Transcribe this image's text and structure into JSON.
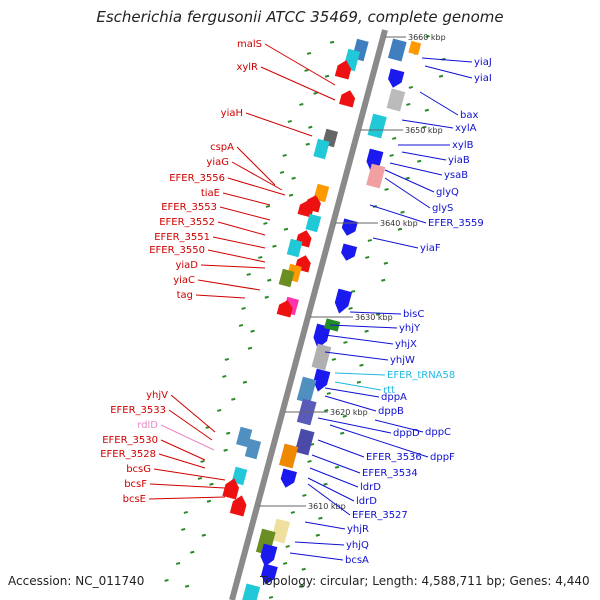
{
  "title": "Escherichia fergusonii ATCC 35469, complete genome",
  "footer": {
    "accession": "Accession: NC_011740",
    "summary": "Topology: circular; Length: 4,588,711 bp; Genes: 4,440"
  },
  "colors": {
    "left_label": "#d00000",
    "right_label": "#1010d0",
    "trna_label": "#22b8e0",
    "rna_label": "#e888c8",
    "backbone": "#808080"
  },
  "scale_ticks": [
    "3660 kbp",
    "3650 kbp",
    "3640 kbp",
    "3630 kbp",
    "3620 kbp",
    "3610 kbp"
  ],
  "left_genes": [
    {
      "name": "malS",
      "color": "red"
    },
    {
      "name": "xylR",
      "color": "red"
    },
    {
      "name": "yiaH",
      "color": "red"
    },
    {
      "name": "cspA",
      "color": "red"
    },
    {
      "name": "yiaG",
      "color": "red"
    },
    {
      "name": "EFER_3556",
      "color": "red"
    },
    {
      "name": "tiaE",
      "color": "red"
    },
    {
      "name": "EFER_3553",
      "color": "red"
    },
    {
      "name": "EFER_3552",
      "color": "red"
    },
    {
      "name": "EFER_3551",
      "color": "red"
    },
    {
      "name": "EFER_3550",
      "color": "red"
    },
    {
      "name": "yiaD",
      "color": "red"
    },
    {
      "name": "yiaC",
      "color": "red"
    },
    {
      "name": "tag",
      "color": "red"
    },
    {
      "name": "yhjV",
      "color": "red"
    },
    {
      "name": "EFER_3533",
      "color": "red"
    },
    {
      "name": "rdlD",
      "color": "pink"
    },
    {
      "name": "EFER_3530",
      "color": "red"
    },
    {
      "name": "EFER_3528",
      "color": "red"
    },
    {
      "name": "bcsG",
      "color": "red"
    },
    {
      "name": "bcsF",
      "color": "red"
    },
    {
      "name": "bcsE",
      "color": "red"
    }
  ],
  "right_genes": [
    {
      "name": "yiaJ",
      "color": "blue"
    },
    {
      "name": "yiaI",
      "color": "blue"
    },
    {
      "name": "bax",
      "color": "blue"
    },
    {
      "name": "xylA",
      "color": "blue"
    },
    {
      "name": "xylB",
      "color": "blue"
    },
    {
      "name": "yiaB",
      "color": "blue"
    },
    {
      "name": "ysaB",
      "color": "blue"
    },
    {
      "name": "glyQ",
      "color": "blue"
    },
    {
      "name": "glyS",
      "color": "blue"
    },
    {
      "name": "EFER_3559",
      "color": "blue"
    },
    {
      "name": "yiaF",
      "color": "blue"
    },
    {
      "name": "bisC",
      "color": "blue"
    },
    {
      "name": "yhjY",
      "color": "blue"
    },
    {
      "name": "yhjX",
      "color": "blue"
    },
    {
      "name": "yhjW",
      "color": "blue"
    },
    {
      "name": "EFER_tRNA58",
      "color": "cyan"
    },
    {
      "name": "rtt",
      "color": "cyan"
    },
    {
      "name": "dppA",
      "color": "blue"
    },
    {
      "name": "dppB",
      "color": "blue"
    },
    {
      "name": "dppC",
      "color": "blue"
    },
    {
      "name": "dppD",
      "color": "blue"
    },
    {
      "name": "dppF",
      "color": "blue"
    },
    {
      "name": "EFER_3536",
      "color": "blue"
    },
    {
      "name": "EFER_3534",
      "color": "blue"
    },
    {
      "name": "ldrD",
      "color": "blue"
    },
    {
      "name": "ldrD",
      "color": "blue"
    },
    {
      "name": "EFER_3527",
      "color": "blue"
    },
    {
      "name": "yhjR",
      "color": "blue"
    },
    {
      "name": "yhjQ",
      "color": "blue"
    },
    {
      "name": "bcsA",
      "color": "blue"
    }
  ]
}
